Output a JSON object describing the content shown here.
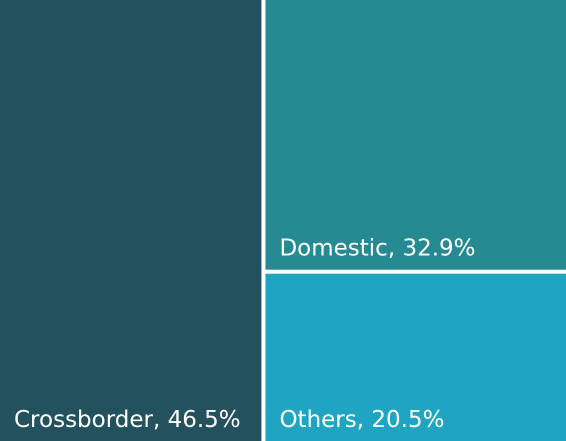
{
  "chart_data": {
    "type": "treemap",
    "values": [
      46.5,
      32.9,
      20.5
    ],
    "value_labels": [
      "Crossborder, 46.5%",
      "Domestic, 32.9%",
      "Others, 20.5%"
    ],
    "colors": [
      "#23525e",
      "#268a93",
      "#1fa5c2"
    ]
  }
}
